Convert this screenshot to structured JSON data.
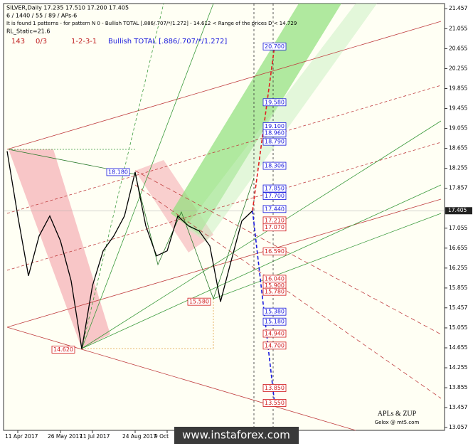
{
  "chart_data": {
    "type": "line",
    "header": {
      "symbol_line": "SILVER,Daily  17.235 17.510 17.200 17.405",
      "settings_line": "6 / 1440 / 55 / 89 / APs-6",
      "pattern_line": "It is found 1 patterns  -  for pattern N 0 - Bullish TOTAL [.886/.707/*/1.272] - 14.612 < Range of the prices D < 14.729",
      "static_line": "RL_Static=21.6",
      "count": "143",
      "ratio": "0/3",
      "sequence": "1-2-3-1",
      "pattern_name": "Bullish TOTAL [.886/.707/*/1.272]"
    },
    "categories": [
      null,
      "11 Apr 2017",
      null,
      null,
      null,
      "26 May 2017",
      null,
      null,
      "11 Jul 2017",
      null,
      null,
      null,
      "24 Aug 2017",
      null,
      null,
      "9 Oct",
      null,
      null,
      null,
      null,
      null,
      null,
      null,
      null
    ],
    "series": [
      {
        "name": "SILVER",
        "color": "#000000",
        "values": [
          18.6,
          17.3,
          16.1,
          16.9,
          17.3,
          16.8,
          16.0,
          14.63,
          15.9,
          16.6,
          16.9,
          17.3,
          18.18,
          17.1,
          16.5,
          16.6,
          17.3,
          17.1,
          17.0,
          16.7,
          15.58,
          16.4,
          17.2,
          17.405
        ]
      }
    ],
    "current_price": {
      "value": 17.405,
      "label": "17.405"
    },
    "ylim": [
      13.0,
      21.56
    ],
    "yticks": [
      21.457,
      21.055,
      20.655,
      20.255,
      19.855,
      19.455,
      19.055,
      18.655,
      18.255,
      17.857,
      17.055,
      16.655,
      16.255,
      15.855,
      15.457,
      15.055,
      14.655,
      14.255,
      13.855,
      13.457,
      13.057
    ],
    "levels": [
      {
        "value": 20.7,
        "label": "20.700",
        "color": "#1a1adc"
      },
      {
        "value": 19.58,
        "label": "19.580",
        "color": "#1a1adc"
      },
      {
        "value": 19.1,
        "label": "19.100",
        "color": "#1a1adc"
      },
      {
        "value": 18.96,
        "label": "18.960",
        "color": "#1a1adc"
      },
      {
        "value": 18.79,
        "label": "18.790",
        "color": "#1a1adc"
      },
      {
        "value": 18.306,
        "label": "18.306",
        "color": "#1a1adc"
      },
      {
        "value": 18.18,
        "label": "18.180",
        "color": "#1a1adc"
      },
      {
        "value": 17.85,
        "label": "17.850",
        "color": "#1a1adc"
      },
      {
        "value": 17.7,
        "label": "17.700",
        "color": "#1a1adc"
      },
      {
        "value": 17.44,
        "label": "17.440",
        "color": "#1a1adc"
      },
      {
        "value": 17.21,
        "label": "17.210",
        "color": "#d01818"
      },
      {
        "value": 17.07,
        "label": "17.070",
        "color": "#d01818"
      },
      {
        "value": 16.59,
        "label": "16.590",
        "color": "#d01818"
      },
      {
        "value": 16.04,
        "label": "16.040",
        "color": "#d01818"
      },
      {
        "value": 15.9,
        "label": "15.900",
        "color": "#d01818"
      },
      {
        "value": 15.78,
        "label": "15.780",
        "color": "#d01818"
      },
      {
        "value": 15.58,
        "label": "15.580",
        "color": "#d01818"
      },
      {
        "value": 15.38,
        "label": "15.380",
        "color": "#1a1adc"
      },
      {
        "value": 15.18,
        "label": "15.180",
        "color": "#1a1adc"
      },
      {
        "value": 14.94,
        "label": "14.940",
        "color": "#d01818"
      },
      {
        "value": 14.7,
        "label": "14.700",
        "color": "#d01818"
      },
      {
        "value": 14.62,
        "label": "14.620",
        "color": "#d01818"
      },
      {
        "value": 13.85,
        "label": "13.850",
        "color": "#d01818"
      },
      {
        "value": 13.55,
        "label": "13.550",
        "color": "#d01818"
      }
    ],
    "footer": {
      "brand": "APLs & ZUP",
      "author": "Gelox @ mt5.com",
      "watermark": "www.instaforex.com"
    }
  }
}
